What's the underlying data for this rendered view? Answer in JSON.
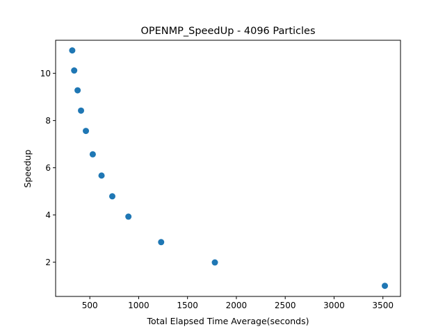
{
  "chart_data": {
    "type": "scatter",
    "title": "OPENMP_SpeedUp - 4096 Particles",
    "xlabel": "Total Elapsed Time Average(seconds)",
    "ylabel": "Speedup",
    "xlim": [
      150,
      3680
    ],
    "ylim": [
      0.55,
      11.4
    ],
    "xticks": [
      500,
      1000,
      1500,
      2000,
      2500,
      3000,
      3500
    ],
    "xtick_labels": [
      "500",
      "1000",
      "1500",
      "2000",
      "2500",
      "3000",
      "3500"
    ],
    "yticks": [
      2,
      4,
      6,
      8,
      10
    ],
    "ytick_labels": [
      "2",
      "4",
      "6",
      "8",
      "10"
    ],
    "grid": false,
    "marker_color": "#1f77b4",
    "series": [
      {
        "x": [
          320,
          340,
          375,
          410,
          460,
          530,
          620,
          730,
          895,
          1230,
          1780,
          3520
        ],
        "y": [
          10.97,
          10.12,
          9.28,
          8.42,
          7.56,
          6.57,
          5.67,
          4.79,
          3.93,
          2.85,
          1.99,
          1.0
        ]
      }
    ]
  }
}
